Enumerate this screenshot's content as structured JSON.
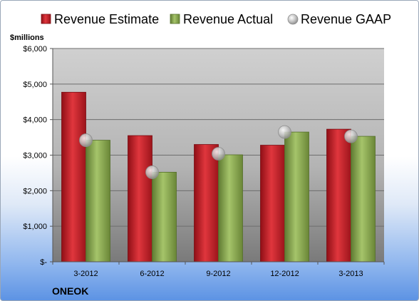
{
  "chart_data": {
    "type": "bar",
    "unit_label": "$millions",
    "company": "ONEOK",
    "categories": [
      "3-2012",
      "6-2012",
      "9-2012",
      "12-2012",
      "3-2013"
    ],
    "yticks": [
      0,
      1000,
      2000,
      3000,
      4000,
      5000,
      6000
    ],
    "ytick_labels": [
      "$-",
      "$1,000",
      "$2,000",
      "$3,000",
      "$4,000",
      "$5,000",
      "$6,000"
    ],
    "ylim": [
      0,
      6000
    ],
    "grid": true,
    "legend_position": "top",
    "series": [
      {
        "name": "Revenue Estimate",
        "kind": "bar",
        "color": "#c8202a",
        "values": [
          4770,
          3550,
          3300,
          3280,
          3730
        ]
      },
      {
        "name": "Revenue Actual",
        "kind": "bar",
        "color": "#8aa852",
        "values": [
          3420,
          2520,
          3010,
          3650,
          3530
        ]
      },
      {
        "name": "Revenue GAAP",
        "kind": "marker",
        "color": "#b9b9b9",
        "values": [
          3420,
          2520,
          3040,
          3650,
          3530
        ]
      }
    ]
  }
}
